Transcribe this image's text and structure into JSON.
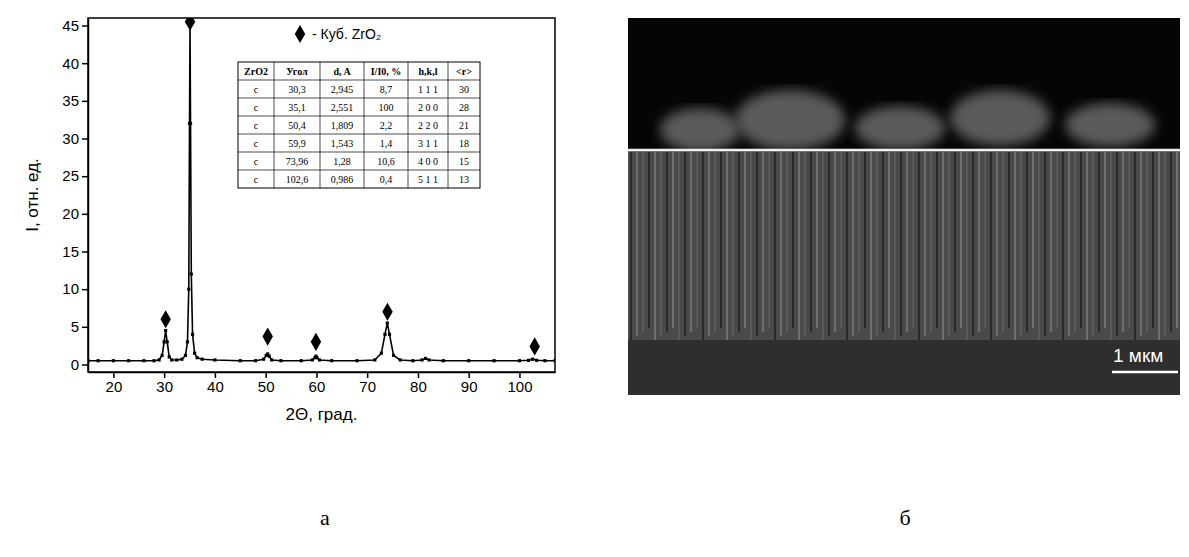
{
  "chart_data": {
    "type": "line",
    "x_label": "2Θ, град.",
    "y_label": "I, отн. ед.",
    "xlim": [
      15,
      107
    ],
    "xticks": [
      20,
      30,
      40,
      50,
      60,
      70,
      80,
      90,
      100
    ],
    "ylim": [
      -1,
      46
    ],
    "yticks": [
      0,
      5,
      10,
      15,
      20,
      25,
      30,
      35,
      40,
      45
    ],
    "grid": false,
    "legend": "top",
    "series": [
      {
        "name": null,
        "type": "line",
        "color": "#000000",
        "marker": "square",
        "line_style": "solid",
        "x": [
          15,
          17,
          20,
          23,
          26,
          28,
          29,
          29.6,
          30,
          30.3,
          30.6,
          31,
          31.5,
          32.5,
          33.5,
          34.2,
          34.6,
          34.85,
          35.0,
          35.1,
          35.2,
          35.35,
          35.6,
          36,
          36.5,
          37.5,
          40,
          45,
          48,
          49.6,
          50.1,
          50.4,
          50.7,
          51.2,
          53,
          57,
          59.2,
          59.7,
          59.9,
          60.1,
          60.6,
          63,
          68,
          71.5,
          72.8,
          73.5,
          73.96,
          74.4,
          75.2,
          76.5,
          79,
          80.8,
          81.5,
          82.2,
          85,
          90,
          95,
          100,
          101.8,
          102.6,
          103.4,
          105,
          107
        ],
        "values": [
          0.5,
          0.5,
          0.5,
          0.5,
          0.5,
          0.5,
          0.6,
          1.2,
          3,
          4.5,
          3,
          1,
          0.6,
          0.6,
          0.7,
          1.2,
          3,
          10,
          32,
          45,
          32,
          12,
          4,
          1.5,
          0.9,
          0.7,
          0.6,
          0.5,
          0.5,
          0.7,
          1.2,
          1.4,
          1.1,
          0.6,
          0.5,
          0.5,
          0.6,
          0.9,
          1.1,
          0.9,
          0.6,
          0.5,
          0.5,
          0.6,
          1.5,
          4,
          5.5,
          4,
          1.2,
          0.6,
          0.5,
          0.6,
          0.8,
          0.6,
          0.5,
          0.5,
          0.5,
          0.5,
          0.55,
          0.7,
          0.55,
          0.5,
          0.5
        ]
      },
      {
        "name": "- Куб. ZrO₂",
        "type": "scatter",
        "color": "#000000",
        "marker": "diamond",
        "x": [
          30.3,
          35.1,
          50.4,
          59.9,
          74.0,
          103.0
        ],
        "values": [
          6.0,
          45.5,
          3.7,
          3.0,
          7.0,
          2.4
        ]
      }
    ]
  },
  "table": {
    "header": [
      "ZrO2",
      "Угол",
      "d, A",
      "I/I0, %",
      "h,k,l",
      "<r>"
    ],
    "rows": [
      [
        "c",
        "30,3",
        "2,945",
        "8,7",
        "1 1 1",
        "30"
      ],
      [
        "c",
        "35,1",
        "2,551",
        "100",
        "2 0 0",
        "28"
      ],
      [
        "c",
        "50,4",
        "1,809",
        "2,2",
        "2 2 0",
        "21"
      ],
      [
        "c",
        "59,9",
        "1,543",
        "1,4",
        "3 1 1",
        "18"
      ],
      [
        "c",
        "73,96",
        "1,28",
        "10,6",
        "4 0 0",
        "15"
      ],
      [
        "c",
        "102,6",
        "0,986",
        "0,4",
        "5 1 1",
        "13"
      ]
    ]
  },
  "micrograph": {
    "scale_bar": "1 мкм"
  },
  "panel_labels": [
    "а",
    "б"
  ]
}
